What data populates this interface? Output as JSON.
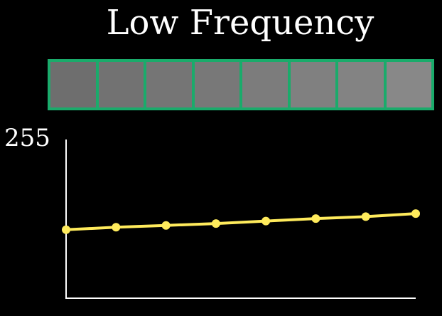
{
  "title": "Low Frequency",
  "pixel_strip": {
    "border_color": "#1aab6b",
    "cells": [
      {
        "value": 110
      },
      {
        "value": 114
      },
      {
        "value": 117
      },
      {
        "value": 120
      },
      {
        "value": 124
      },
      {
        "value": 128
      },
      {
        "value": 131
      },
      {
        "value": 136
      }
    ]
  },
  "chart_data": {
    "type": "line",
    "x": [
      1,
      2,
      3,
      4,
      5,
      6,
      7,
      8
    ],
    "series": [
      {
        "values": [
          110,
          114,
          117,
          120,
          124,
          128,
          131,
          136
        ],
        "color": "#ffeb5c"
      }
    ],
    "ylim": [
      0,
      255
    ],
    "y_tick_labels": [
      "255"
    ],
    "grid": false,
    "axis_color": "#ffffff"
  }
}
